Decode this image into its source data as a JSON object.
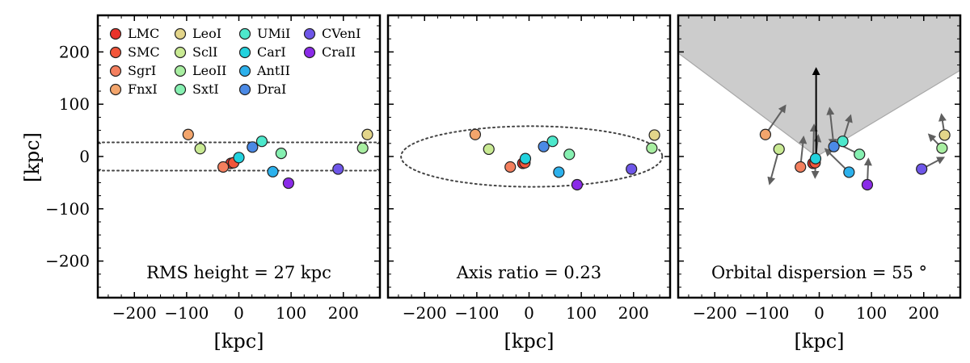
{
  "figure": {
    "ylabel": "[kpc]",
    "xlabel": "[kpc]",
    "degree_symbol": "°"
  },
  "chart_data": [
    {
      "type": "scatter",
      "panel": "left",
      "title": "",
      "xlabel": "[kpc]",
      "ylabel": "[kpc]",
      "xlim": [
        -270,
        270
      ],
      "ylim": [
        -270,
        270
      ],
      "xticks": [
        -200,
        -100,
        0,
        100,
        200
      ],
      "yticks": [
        -200,
        -100,
        0,
        100,
        200
      ],
      "annotation": "RMS height = 27 kpc",
      "reference_lines": [
        27,
        -27
      ],
      "legend_position": "upper-left",
      "points": [
        {
          "name": "LMC",
          "x": -15,
          "y": -13,
          "color": "#e8322a"
        },
        {
          "name": "SMC",
          "x": -10,
          "y": -12,
          "color": "#f2553a"
        },
        {
          "name": "SgrI",
          "x": -30,
          "y": -20,
          "color": "#f47f5e"
        },
        {
          "name": "FnxI",
          "x": -97,
          "y": 42,
          "color": "#f3a56c"
        },
        {
          "name": "LeoI",
          "x": 246,
          "y": 42,
          "color": "#e3d58a"
        },
        {
          "name": "SclI",
          "x": -74,
          "y": 15,
          "color": "#c9ea93"
        },
        {
          "name": "LeoII",
          "x": 237,
          "y": 16,
          "color": "#a8eea1"
        },
        {
          "name": "SxtI",
          "x": 81,
          "y": 6,
          "color": "#86f0b1"
        },
        {
          "name": "UMiI",
          "x": 44,
          "y": 29,
          "color": "#4de8cc"
        },
        {
          "name": "CarI",
          "x": 0,
          "y": -2,
          "color": "#22d2de"
        },
        {
          "name": "AntII",
          "x": 65,
          "y": -29,
          "color": "#2cb1ec"
        },
        {
          "name": "DraI",
          "x": 26,
          "y": 18,
          "color": "#4b8ae6"
        },
        {
          "name": "CVenI",
          "x": 190,
          "y": -24,
          "color": "#6e56e8"
        },
        {
          "name": "CraII",
          "x": 95,
          "y": -51,
          "color": "#8a2be8"
        }
      ]
    },
    {
      "type": "scatter",
      "panel": "middle",
      "title": "",
      "xlabel": "[kpc]",
      "ylabel": "",
      "xlim": [
        -270,
        270
      ],
      "ylim": [
        -270,
        270
      ],
      "xticks": [
        -200,
        -100,
        0,
        100,
        200
      ],
      "yticks": [
        -200,
        -100,
        0,
        100,
        200
      ],
      "annotation": "Axis ratio = 0.23",
      "ellipse": {
        "cx": 5,
        "cy": 0,
        "rx": 250,
        "ry": 58
      },
      "points": [
        {
          "name": "LMC",
          "x": -12,
          "y": -13,
          "color": "#e8322a"
        },
        {
          "name": "SMC",
          "x": -8,
          "y": -12,
          "color": "#f2553a"
        },
        {
          "name": "SgrI",
          "x": -36,
          "y": -20,
          "color": "#f47f5e"
        },
        {
          "name": "FnxI",
          "x": -103,
          "y": 42,
          "color": "#f3a56c"
        },
        {
          "name": "LeoI",
          "x": 240,
          "y": 41,
          "color": "#e3d58a"
        },
        {
          "name": "SclI",
          "x": -77,
          "y": 14,
          "color": "#c9ea93"
        },
        {
          "name": "LeoII",
          "x": 235,
          "y": 16,
          "color": "#a8eea1"
        },
        {
          "name": "SxtI",
          "x": 77,
          "y": 4,
          "color": "#86f0b1"
        },
        {
          "name": "UMiI",
          "x": 45,
          "y": 29,
          "color": "#4de8cc"
        },
        {
          "name": "CarI",
          "x": -7,
          "y": -4,
          "color": "#22d2de"
        },
        {
          "name": "AntII",
          "x": 57,
          "y": -30,
          "color": "#2cb1ec"
        },
        {
          "name": "DraI",
          "x": 28,
          "y": 19,
          "color": "#4b8ae6"
        },
        {
          "name": "CVenI",
          "x": 196,
          "y": -24,
          "color": "#6e56e8"
        },
        {
          "name": "CraII",
          "x": 92,
          "y": -54,
          "color": "#8a2be8"
        }
      ]
    },
    {
      "type": "scatter",
      "panel": "right",
      "title": "",
      "xlabel": "[kpc]",
      "ylabel": "",
      "xlim": [
        -270,
        270
      ],
      "ylim": [
        -270,
        270
      ],
      "xticks": [
        -200,
        -100,
        0,
        100,
        200
      ],
      "yticks": [
        -200,
        -100,
        0,
        100,
        200
      ],
      "annotation": "Orbital dispersion = 55",
      "annotation_unit": "°",
      "shaded_region": [
        [
          -270,
          198
        ],
        [
          -270,
          270
        ],
        [
          270,
          270
        ],
        [
          270,
          165
        ],
        [
          -5,
          0
        ]
      ],
      "shade_color": "#cccccc",
      "main_arrow": {
        "x0": -6,
        "y0": 0,
        "x1": -6,
        "y1": 168,
        "color": "#000000"
      },
      "points": [
        {
          "name": "LMC",
          "x": -12,
          "y": -13,
          "color": "#e8322a",
          "arrow_to": [
            -10,
            60
          ]
        },
        {
          "name": "SMC",
          "x": -8,
          "y": -12,
          "color": "#f2553a",
          "arrow_to": [
            -2,
            40
          ]
        },
        {
          "name": "SgrI",
          "x": -36,
          "y": -20,
          "color": "#f47f5e",
          "arrow_to": [
            -30,
            37
          ]
        },
        {
          "name": "FnxI",
          "x": -103,
          "y": 42,
          "color": "#f3a56c",
          "arrow_to": [
            -65,
            97
          ]
        },
        {
          "name": "LeoI",
          "x": 240,
          "y": 41,
          "color": "#e3d58a",
          "arrow_to": [
            234,
            80
          ]
        },
        {
          "name": "SclI",
          "x": -77,
          "y": 14,
          "color": "#c9ea93",
          "arrow_to": [
            -95,
            -52
          ]
        },
        {
          "name": "LeoII",
          "x": 235,
          "y": 16,
          "color": "#a8eea1",
          "arrow_to": [
            210,
            42
          ]
        },
        {
          "name": "SxtI",
          "x": 77,
          "y": 4,
          "color": "#86f0b1",
          "arrow_to": [
            20,
            32
          ]
        },
        {
          "name": "UMiI",
          "x": 45,
          "y": 29,
          "color": "#4de8cc",
          "arrow_to": [
            60,
            78
          ]
        },
        {
          "name": "CarI",
          "x": -7,
          "y": -4,
          "color": "#22d2de",
          "arrow_to": [
            -8,
            -40
          ]
        },
        {
          "name": "AntII",
          "x": 57,
          "y": -30,
          "color": "#2cb1ec",
          "arrow_to": [
            12,
            14
          ]
        },
        {
          "name": "DraI",
          "x": 28,
          "y": 19,
          "color": "#4b8ae6",
          "arrow_to": [
            20,
            92
          ]
        },
        {
          "name": "CVenI",
          "x": 196,
          "y": -24,
          "color": "#6e56e8",
          "arrow_to": [
            238,
            -2
          ]
        },
        {
          "name": "CraII",
          "x": 92,
          "y": -54,
          "color": "#8a2be8",
          "arrow_to": [
            94,
            -5
          ]
        }
      ]
    }
  ]
}
